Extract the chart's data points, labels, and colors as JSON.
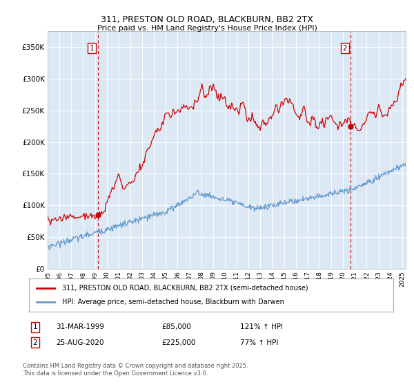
{
  "title": "311, PRESTON OLD ROAD, BLACKBURN, BB2 2TX",
  "subtitle": "Price paid vs. HM Land Registry's House Price Index (HPI)",
  "plot_bg_color": "#dce9f5",
  "red_line_label": "311, PRESTON OLD ROAD, BLACKBURN, BB2 2TX (semi-detached house)",
  "blue_line_label": "HPI: Average price, semi-detached house, Blackburn with Darwen",
  "annotation1_date": "31-MAR-1999",
  "annotation1_price": "£85,000",
  "annotation1_hpi": "121% ↑ HPI",
  "annotation1_year": 1999.25,
  "annotation1_value": 85000,
  "annotation2_date": "25-AUG-2020",
  "annotation2_price": "£225,000",
  "annotation2_hpi": "77% ↑ HPI",
  "annotation2_year": 2020.65,
  "annotation2_value": 225000,
  "footer": "Contains HM Land Registry data © Crown copyright and database right 2025.\nThis data is licensed under the Open Government Licence v3.0.",
  "ylim": [
    0,
    375000
  ],
  "yticks": [
    0,
    50000,
    100000,
    150000,
    200000,
    250000,
    300000,
    350000
  ],
  "red_color": "#cc0000",
  "blue_color": "#6699cc",
  "vline_color": "#cc0000",
  "grid_color": "#ffffff",
  "xlim_start": 1995,
  "xlim_end": 2025.3
}
